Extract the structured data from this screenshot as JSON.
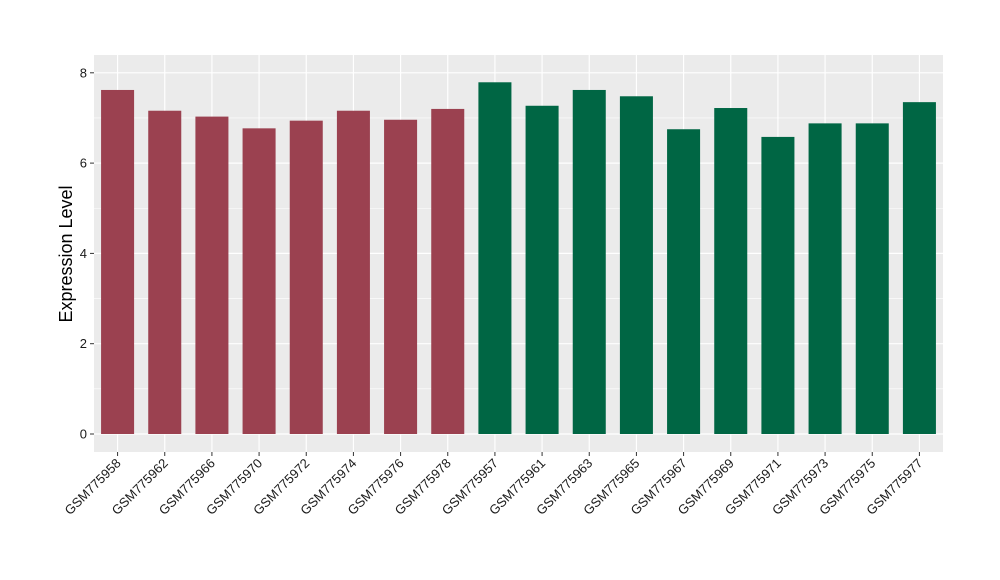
{
  "chart_data": {
    "type": "bar",
    "title": "",
    "xlabel": "",
    "ylabel": "Expression Level",
    "ylim": [
      0,
      8
    ],
    "yticks": [
      0,
      2,
      4,
      6,
      8
    ],
    "grid": true,
    "legend": "none",
    "categories": [
      "GSM775958",
      "GSM775962",
      "GSM775966",
      "GSM775970",
      "GSM775972",
      "GSM775974",
      "GSM775976",
      "GSM775978",
      "GSM775957",
      "GSM775961",
      "GSM775963",
      "GSM775965",
      "GSM775967",
      "GSM775969",
      "GSM775971",
      "GSM775973",
      "GSM775975",
      "GSM775977"
    ],
    "values": [
      7.62,
      7.16,
      7.03,
      6.77,
      6.94,
      7.16,
      6.96,
      7.2,
      7.79,
      7.27,
      7.62,
      7.48,
      6.75,
      7.22,
      6.58,
      6.88,
      6.88,
      7.35
    ],
    "group_sizes": [
      8,
      10
    ],
    "colors": [
      "#9b4150",
      "#006644"
    ],
    "panel_background": "#ebebeb",
    "grid_color": "#ffffff"
  }
}
